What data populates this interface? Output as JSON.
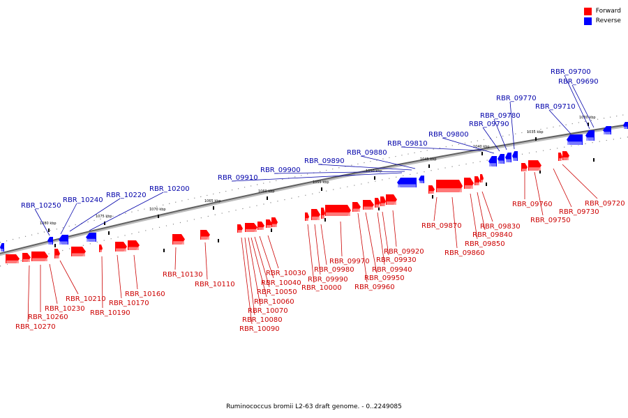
{
  "legend": {
    "forward_label": "Forward",
    "reverse_label": "Reverse",
    "forward_color": "#ff0000",
    "reverse_color": "#0000ff"
  },
  "caption": "Ruminococcus bromii L2-63 draft genome. - 0..2249085",
  "scale_labels": [
    "1080 kbp",
    "1075 kbp",
    "1070 kbp",
    "1065 kbp",
    "1060 kbp",
    "1055 kbp",
    "1050 kbp",
    "1045 kbp",
    "1040 kbp",
    "1035 kbp",
    "1030 kbp"
  ],
  "genes": {
    "reverse": [
      "RBR_10250",
      "RBR_10240",
      "RBR_10220",
      "RBR_10200",
      "RBR_09910",
      "RBR_09900",
      "RBR_09890",
      "RBR_09880",
      "RBR_09810",
      "RBR_09800",
      "RBR_09790",
      "RBR_09780",
      "RBR_09770",
      "RBR_09710",
      "RBR_09700",
      "RBR_09690"
    ],
    "forward": [
      "RBR_10270",
      "RBR_10260",
      "RBR_10230",
      "RBR_10210",
      "RBR_10190",
      "RBR_10170",
      "RBR_10160",
      "RBR_10130",
      "RBR_10110",
      "RBR_10090",
      "RBR_10080",
      "RBR_10070",
      "RBR_10060",
      "RBR_10050",
      "RBR_10040",
      "RBR_10030",
      "RBR_10000",
      "RBR_09990",
      "RBR_09980",
      "RBR_09970",
      "RBR_09960",
      "RBR_09950",
      "RBR_09940",
      "RBR_09930",
      "RBR_09920",
      "RBR_09870",
      "RBR_09860",
      "RBR_09850",
      "RBR_09840",
      "RBR_09830",
      "RBR_09760",
      "RBR_09750",
      "RBR_09730",
      "RBR_09720"
    ]
  }
}
